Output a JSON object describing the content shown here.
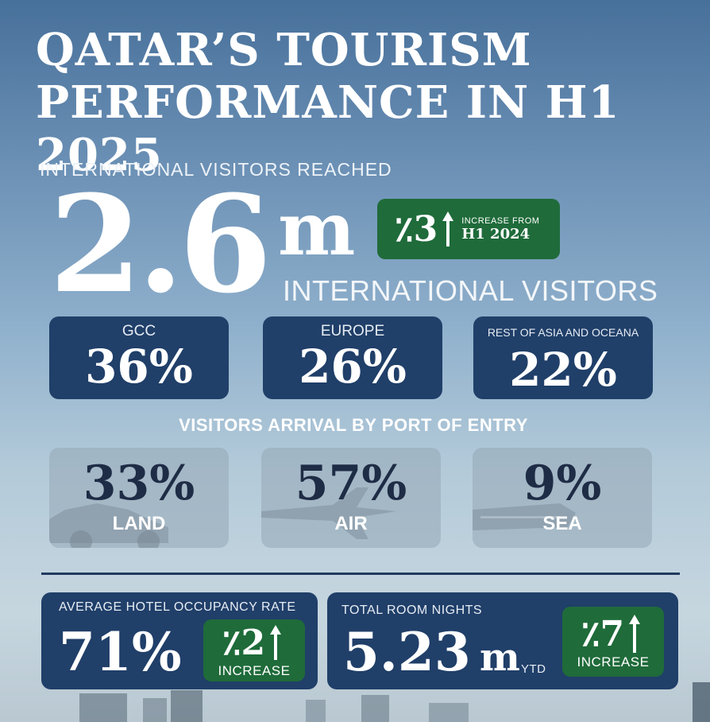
{
  "title": {
    "line1": "QATAR’S TOURISM",
    "line2": "PERFORMANCE IN H1 2025"
  },
  "visitors": {
    "label": "INTERNATIONAL VISITORS REACHED",
    "value": "2.6",
    "unit": "m",
    "subtitle": "INTERNATIONAL VISITORS",
    "badge": {
      "value": "٪3",
      "line1": "INCREASE FROM",
      "line2": "H1 2024"
    }
  },
  "regions": [
    {
      "label": "GCC",
      "value": "36%"
    },
    {
      "label": "EUROPE",
      "value": "26%"
    },
    {
      "label": "REST OF ASIA AND OCEANA",
      "value": "22%"
    }
  ],
  "ports": {
    "heading": "VISITORS ARRIVAL BY PORT OF ENTRY",
    "items": [
      {
        "label": "LAND",
        "value": "33%",
        "icon": "car-icon"
      },
      {
        "label": "AIR",
        "value": "57%",
        "icon": "airplane-icon"
      },
      {
        "label": "SEA",
        "value": "9%",
        "icon": "ship-icon"
      }
    ]
  },
  "hotel": {
    "label": "AVERAGE HOTEL OCCUPANCY RATE",
    "value": "71%",
    "badge_value": "٪2",
    "badge_text": "INCREASE"
  },
  "nights": {
    "label": "TOTAL ROOM NIGHTS",
    "value": "5.23",
    "unit": "m",
    "suffix": "YTD",
    "badge_value": "٪7",
    "badge_text": "INCREASE"
  },
  "colors": {
    "navy": "#203f69",
    "green": "#1f6b3a",
    "dark_text": "#1f2c45"
  }
}
